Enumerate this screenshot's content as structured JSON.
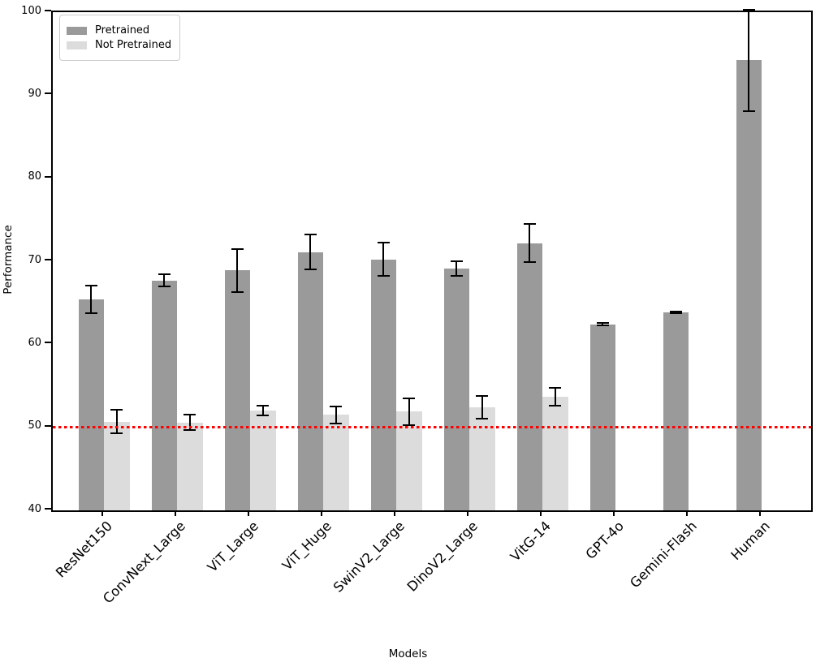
{
  "chart_data": {
    "type": "bar",
    "title": "",
    "xlabel": "Models",
    "ylabel": "Performance",
    "ylim": [
      40,
      100
    ],
    "yticks": [
      40,
      50,
      60,
      70,
      80,
      90,
      100
    ],
    "grid": false,
    "categories": [
      "ResNet150",
      "ConvNext_Large",
      "ViT_Large",
      "ViT_Huge",
      "SwinV2_Large",
      "DinoV2_Large",
      "VitG-14",
      "GPT-4o",
      "Gemini-Flash",
      "Human"
    ],
    "series": [
      {
        "name": "Pretrained",
        "color": "#9a9a9a",
        "values": [
          65.4,
          67.7,
          68.9,
          71.1,
          70.2,
          69.1,
          72.2,
          62.4,
          63.8,
          94.2
        ],
        "errors": [
          1.7,
          0.7,
          2.6,
          2.1,
          2.0,
          0.9,
          2.3,
          0.15,
          0.1,
          6.1
        ]
      },
      {
        "name": "Not Pretrained",
        "color": "#dcdcdc",
        "values": [
          50.7,
          50.6,
          52.0,
          51.5,
          51.9,
          52.4,
          53.7,
          null,
          null,
          null
        ],
        "errors": [
          1.4,
          0.9,
          0.6,
          1.0,
          1.6,
          1.4,
          1.1,
          null,
          null,
          null
        ]
      }
    ],
    "error_bar_color": "#000000",
    "reference_line": {
      "y": 50,
      "color": "#ff0000",
      "style": "dotted"
    },
    "legend": {
      "position": "upper left",
      "entries": [
        "Pretrained",
        "Not Pretrained"
      ]
    }
  }
}
